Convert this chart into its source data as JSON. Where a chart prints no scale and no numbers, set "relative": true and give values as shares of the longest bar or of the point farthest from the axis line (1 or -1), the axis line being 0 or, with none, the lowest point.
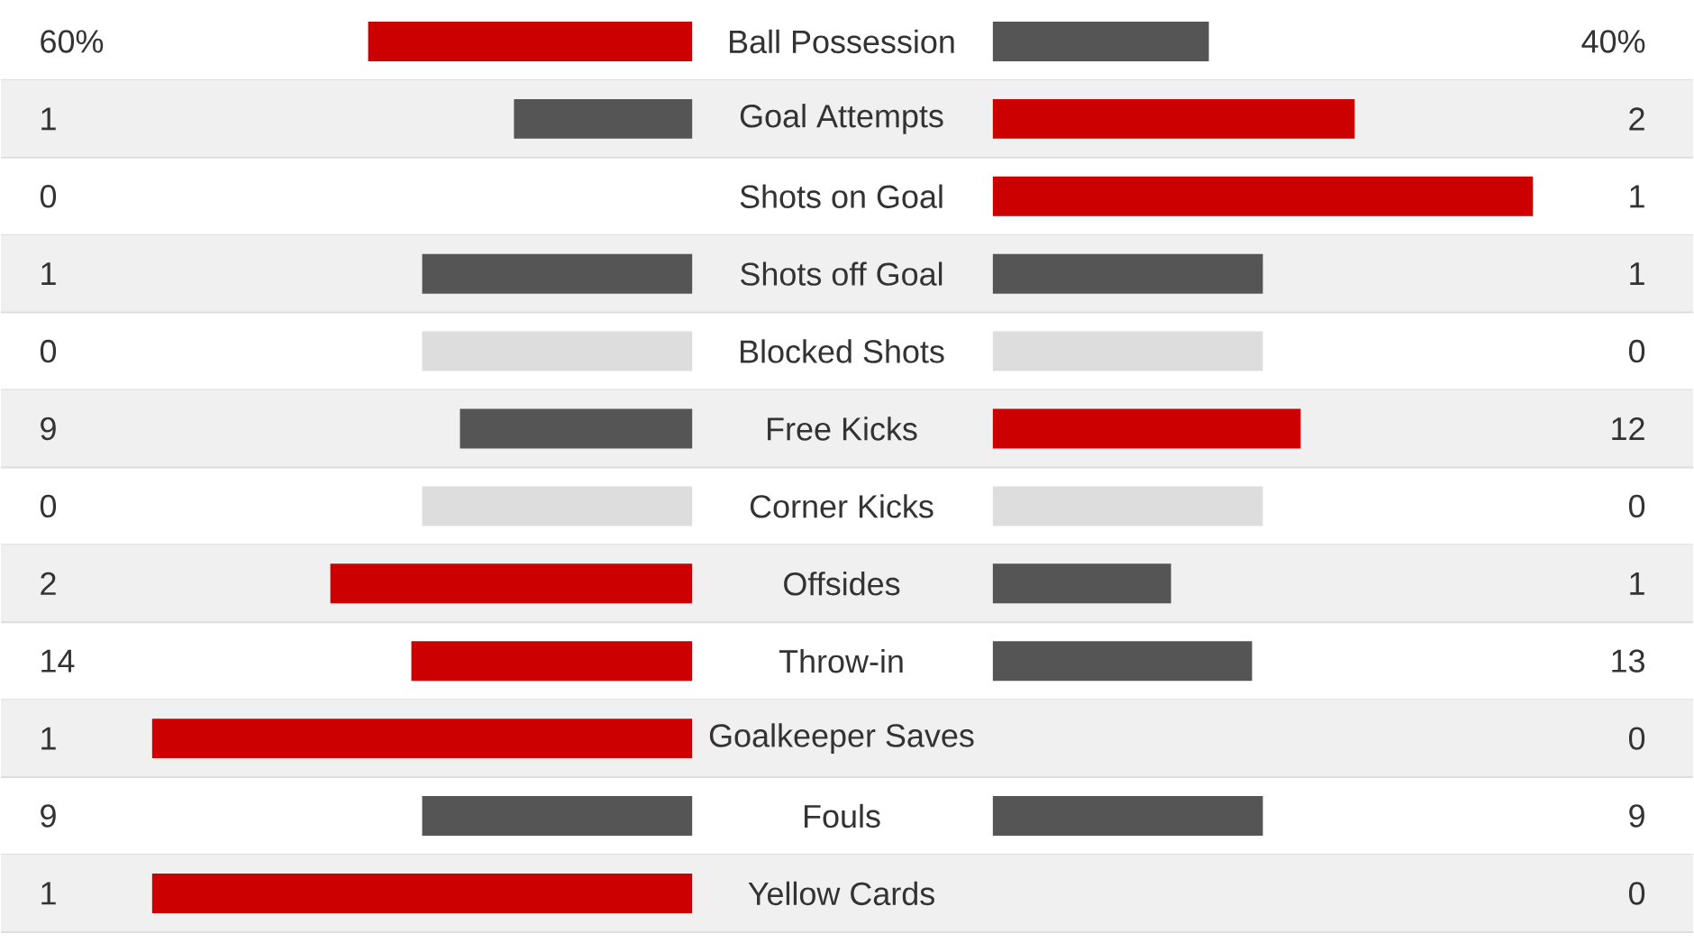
{
  "chart_data": [
    {
      "type": "bar",
      "orientation": "horizontal",
      "relative": true,
      "categories": [
        "Ball Possession",
        "Goal Attempts",
        "Shots on Goal",
        "Shots off Goal",
        "Blocked Shots",
        "Free Kicks",
        "Corner Kicks",
        "Offsides",
        "Throw-in",
        "Goalkeeper Saves",
        "Fouls",
        "Yellow Cards"
      ],
      "series": [
        {
          "values": [
            0.6,
            0.33,
            0,
            0.5,
            0.5,
            0.43,
            0.5,
            0.67,
            0.52,
            1,
            0.5,
            1
          ],
          "colors": [
            "#cc0000",
            "#555555",
            "#555555",
            "#555555",
            "#dddddd",
            "#555555",
            "#dddddd",
            "#cc0000",
            "#cc0000",
            "#cc0000",
            "#555555",
            "#cc0000"
          ]
        }
      ],
      "annotations": [
        "60%",
        "1",
        "0",
        "1",
        "0",
        "9",
        "0",
        "2",
        "14",
        "1",
        "9",
        "1"
      ]
    },
    {
      "type": "bar",
      "orientation": "horizontal",
      "relative": true,
      "categories": [
        null,
        null,
        null,
        null,
        null,
        null,
        null,
        null,
        null,
        null,
        null,
        null
      ],
      "series": [
        {
          "values": [
            0.4,
            0.67,
            1,
            0.5,
            0.5,
            0.57,
            0.5,
            0.33,
            0.48,
            0,
            0.5,
            0
          ],
          "colors": [
            "#555555",
            "#cc0000",
            "#cc0000",
            "#555555",
            "#dddddd",
            "#cc0000",
            "#dddddd",
            "#555555",
            "#555555",
            "#555555",
            "#555555",
            "#555555"
          ]
        }
      ],
      "annotations": [
        "40%",
        "2",
        "1",
        "1",
        "0",
        "12",
        "0",
        "1",
        "13",
        "0",
        "9",
        "0"
      ]
    }
  ]
}
